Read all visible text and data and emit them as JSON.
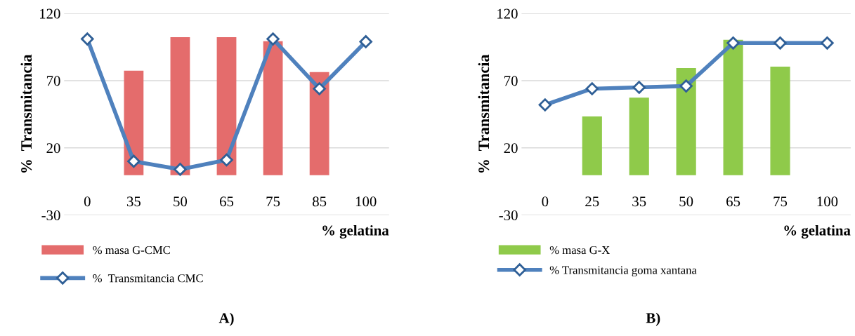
{
  "chart_data": [
    {
      "type": "bar",
      "title": "A)",
      "xlabel": "% gelatina",
      "ylabel": "%  Transmitancia",
      "categories": [
        "0",
        "35",
        "50",
        "65",
        "75",
        "85",
        "100"
      ],
      "ylim": [
        -30,
        120
      ],
      "yticks": [
        -30,
        20,
        70,
        120
      ],
      "grid": "y",
      "legend": "bottom left",
      "series": [
        {
          "name": "% masa G-CMC",
          "color": "#e46c6c",
          "values": [
            null,
            77,
            102,
            102,
            99,
            76,
            null
          ]
        },
        {
          "name": "%  Transmitancia CMC",
          "type": "line",
          "color": "#4f81bd",
          "marker": "diamond",
          "values": [
            101,
            10,
            4,
            11,
            101,
            64,
            99
          ]
        }
      ]
    },
    {
      "type": "bar",
      "title": "B)",
      "xlabel": "% gelatina",
      "ylabel": "%  Transmitancia",
      "categories": [
        "0",
        "25",
        "35",
        "50",
        "65",
        "75",
        "100"
      ],
      "ylim": [
        -30,
        120
      ],
      "yticks": [
        -30,
        20,
        70,
        120
      ],
      "grid": "y",
      "legend": "bottom left",
      "series": [
        {
          "name": "% masa G-X",
          "color": "#8fca4a",
          "values": [
            null,
            43,
            57,
            79,
            100,
            80,
            null
          ]
        },
        {
          "name": "% Transmitancia goma xantana",
          "type": "line",
          "color": "#4f81bd",
          "marker": "diamond",
          "values": [
            52,
            64,
            65,
            66,
            98,
            98,
            98
          ]
        }
      ]
    }
  ]
}
